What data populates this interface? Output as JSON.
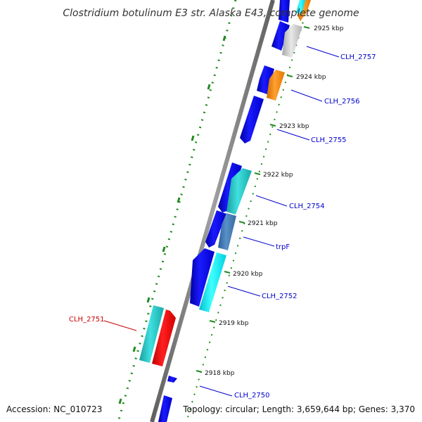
{
  "title": "Clostridium botulinum E3 str. Alaska E43, complete genome",
  "accession": "Accession: NC_010723",
  "topology": "Topology: circular; Length: 3,659,644 bp; Genes: 3,370",
  "ticks": [
    {
      "label": "2925 kbp"
    },
    {
      "label": "2924 kbp"
    },
    {
      "label": "2923 kbp"
    },
    {
      "label": "2922 kbp"
    },
    {
      "label": "2921 kbp"
    },
    {
      "label": "2920 kbp"
    },
    {
      "label": "2919 kbp"
    },
    {
      "label": "2918 kbp"
    }
  ],
  "gene_labels": [
    {
      "name": "CLH_2757",
      "color": "#0000cc"
    },
    {
      "name": "CLH_2756",
      "color": "#0000cc"
    },
    {
      "name": "CLH_2755",
      "color": "#0000cc"
    },
    {
      "name": "CLH_2754",
      "color": "#0000cc"
    },
    {
      "name": "trpF",
      "color": "#0000cc"
    },
    {
      "name": "CLH_2752",
      "color": "#0000cc"
    },
    {
      "name": "CLH_2751",
      "color": "#cc0000"
    },
    {
      "name": "CLH_2750",
      "color": "#0000cc"
    }
  ],
  "colors": {
    "blue_cds": "#0a0af0",
    "cyan_cds": "#22c8c8",
    "bright_cyan_cds": "#00e8f0",
    "steel_cds": "#3f7fbf",
    "orange_cds": "#ff8c00",
    "gray_cds": "#c8c8c8",
    "red_cds": "#ff0000",
    "backbone": "#808080",
    "green_ticks": "#228b22"
  }
}
